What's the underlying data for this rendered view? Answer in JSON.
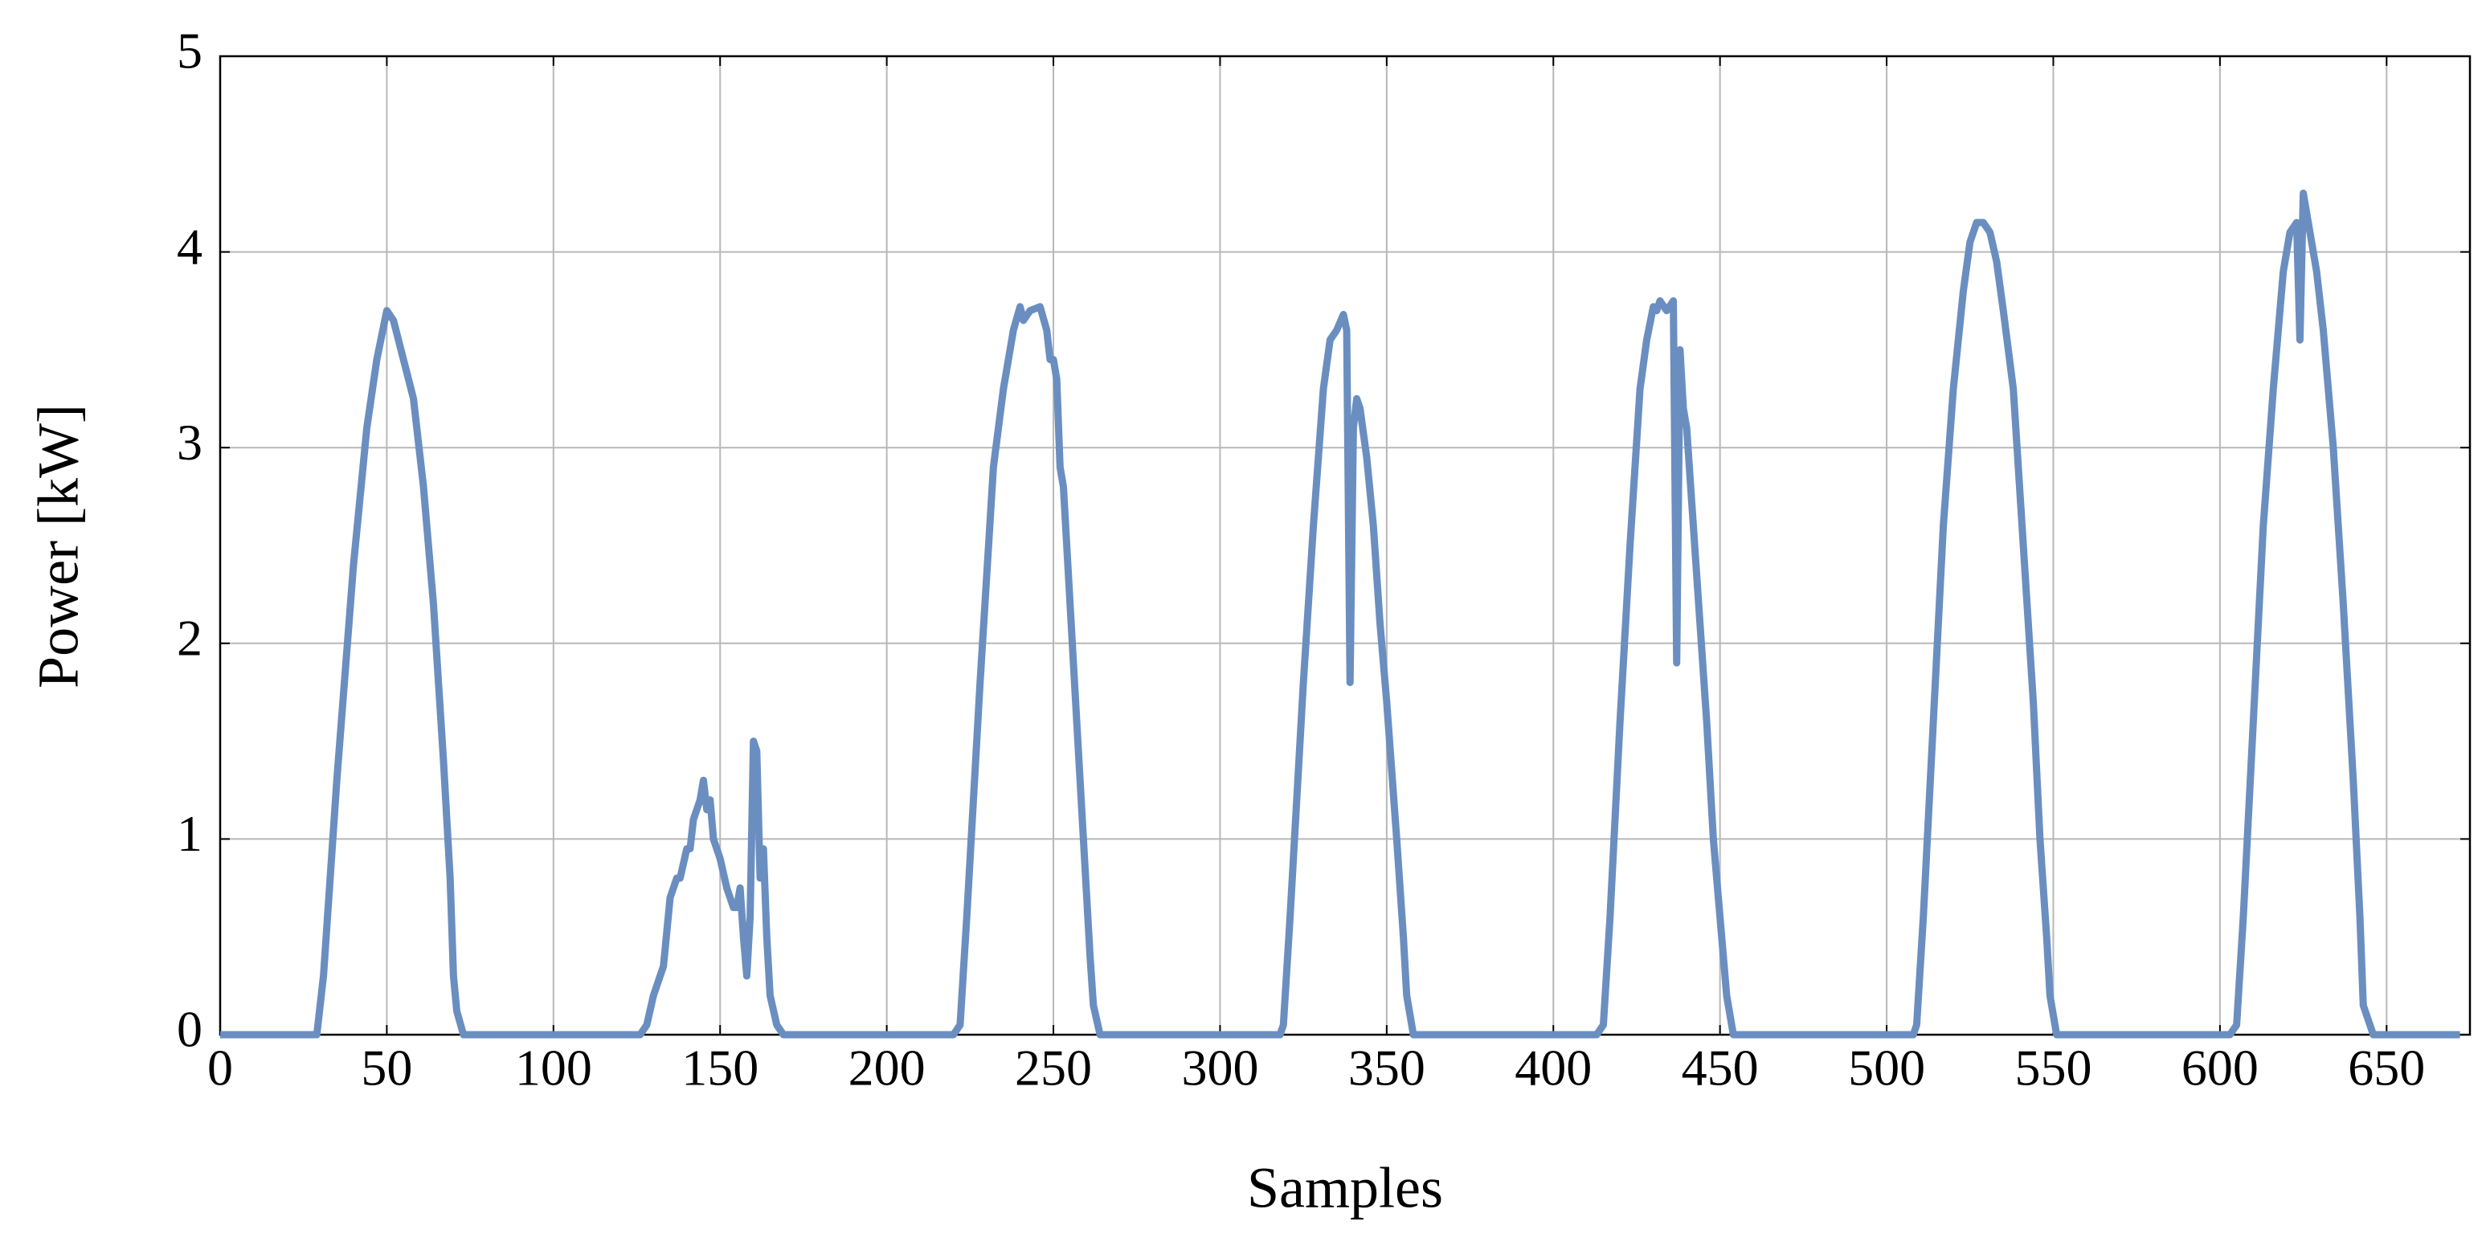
{
  "chart_data": {
    "type": "line",
    "xlabel": "Samples",
    "ylabel": "Power [kW]",
    "color": "#6a8ec0",
    "grid": true,
    "xlim": [
      0,
      675
    ],
    "ylim": [
      0,
      5
    ],
    "xticks": [
      0,
      50,
      100,
      150,
      200,
      250,
      300,
      350,
      400,
      450,
      500,
      550,
      600,
      650
    ],
    "yticks": [
      0,
      1,
      2,
      3,
      4,
      5
    ],
    "x": [
      0,
      29,
      31,
      35,
      40,
      44,
      47,
      50,
      52,
      55,
      58,
      61,
      64,
      67,
      69,
      70,
      71,
      73,
      126,
      128,
      130,
      133,
      135,
      137,
      138,
      140,
      141,
      142,
      144,
      145,
      146,
      147,
      148,
      150,
      152,
      154,
      155,
      156,
      157,
      158,
      159,
      160,
      161,
      162,
      163,
      164,
      165,
      167,
      169,
      220,
      222,
      224,
      228,
      232,
      235,
      238,
      240,
      241,
      243,
      246,
      248,
      249,
      250,
      251,
      252,
      253,
      255,
      257,
      259,
      261,
      262,
      264,
      318,
      319,
      321,
      325,
      328,
      331,
      333,
      335,
      337,
      338,
      339,
      340,
      341,
      342,
      344,
      346,
      348,
      350,
      353,
      355,
      356,
      358,
      413,
      415,
      417,
      420,
      423,
      426,
      428,
      430,
      431,
      432,
      434,
      436,
      437,
      438,
      439,
      440,
      442,
      444,
      446,
      448,
      450,
      452,
      454,
      508,
      509,
      511,
      514,
      517,
      520,
      523,
      525,
      527,
      529,
      531,
      533,
      535,
      538,
      541,
      544,
      546,
      548,
      549,
      551,
      603,
      605,
      607,
      610,
      613,
      616,
      619,
      621,
      623,
      624,
      625,
      627,
      629,
      631,
      634,
      637,
      640,
      642,
      643,
      645,
      646,
      672
    ],
    "values": [
      0,
      0,
      0.3,
      1.3,
      2.4,
      3.1,
      3.45,
      3.7,
      3.65,
      3.45,
      3.25,
      2.8,
      2.2,
      1.4,
      0.8,
      0.3,
      0.12,
      0,
      0,
      0.05,
      0.2,
      0.35,
      0.7,
      0.8,
      0.8,
      0.95,
      0.95,
      1.1,
      1.2,
      1.3,
      1.15,
      1.2,
      1.0,
      0.9,
      0.75,
      0.65,
      0.65,
      0.75,
      0.5,
      0.3,
      0.6,
      1.5,
      1.45,
      0.8,
      0.95,
      0.5,
      0.2,
      0.05,
      0,
      0,
      0.05,
      0.6,
      1.8,
      2.9,
      3.3,
      3.6,
      3.72,
      3.65,
      3.7,
      3.72,
      3.6,
      3.45,
      3.45,
      3.35,
      2.9,
      2.8,
      2.2,
      1.6,
      1.0,
      0.4,
      0.15,
      0,
      0,
      0.05,
      0.6,
      1.8,
      2.6,
      3.3,
      3.55,
      3.6,
      3.68,
      3.6,
      1.8,
      3.1,
      3.25,
      3.2,
      2.95,
      2.6,
      2.1,
      1.7,
      1.0,
      0.5,
      0.2,
      0,
      0,
      0.05,
      0.6,
      1.6,
      2.5,
      3.3,
      3.55,
      3.72,
      3.7,
      3.75,
      3.7,
      3.75,
      1.9,
      3.5,
      3.2,
      3.1,
      2.6,
      2.1,
      1.6,
      1.0,
      0.6,
      0.2,
      0,
      0,
      0.05,
      0.6,
      1.6,
      2.6,
      3.3,
      3.8,
      4.05,
      4.15,
      4.15,
      4.1,
      3.95,
      3.7,
      3.3,
      2.5,
      1.7,
      1.0,
      0.5,
      0.2,
      0,
      0,
      0.05,
      0.6,
      1.6,
      2.6,
      3.3,
      3.9,
      4.1,
      4.15,
      3.55,
      4.3,
      4.1,
      3.9,
      3.6,
      3.0,
      2.2,
      1.3,
      0.6,
      0.15,
      0.05,
      0,
      0
    ]
  }
}
